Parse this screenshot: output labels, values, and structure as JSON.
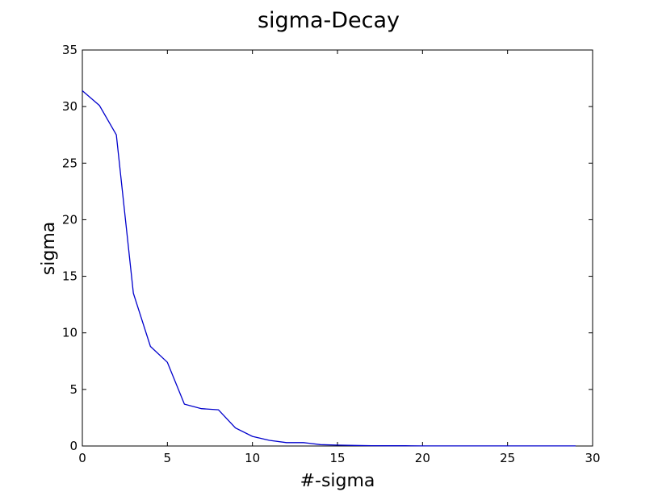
{
  "chart_data": {
    "type": "line",
    "title": "sigma-Decay",
    "xlabel": "#-sigma",
    "ylabel": "sigma",
    "xlim": [
      0,
      30
    ],
    "ylim": [
      0,
      35
    ],
    "xticks": [
      "0",
      "5",
      "10",
      "15",
      "20",
      "25",
      "30"
    ],
    "yticks": [
      "0",
      "5",
      "10",
      "15",
      "20",
      "25",
      "30",
      "35"
    ],
    "grid": false,
    "legend": "none",
    "series": [
      {
        "color": "#0000cc",
        "x": [
          0,
          1,
          2,
          3,
          4,
          5,
          6,
          7,
          8,
          9,
          10,
          11,
          12,
          13,
          14,
          15,
          16,
          17,
          18,
          19,
          20,
          21,
          22,
          23,
          24,
          25,
          26,
          27,
          28,
          29
        ],
        "y": [
          31.4,
          30.1,
          27.5,
          13.5,
          8.8,
          7.4,
          3.7,
          3.3,
          3.2,
          1.6,
          0.85,
          0.5,
          0.3,
          0.3,
          0.12,
          0.08,
          0.05,
          0.03,
          0.02,
          0.02,
          0.01,
          0.01,
          0.01,
          0.01,
          0.01,
          0.01,
          0.01,
          0.01,
          0.01,
          0.01
        ]
      }
    ]
  }
}
